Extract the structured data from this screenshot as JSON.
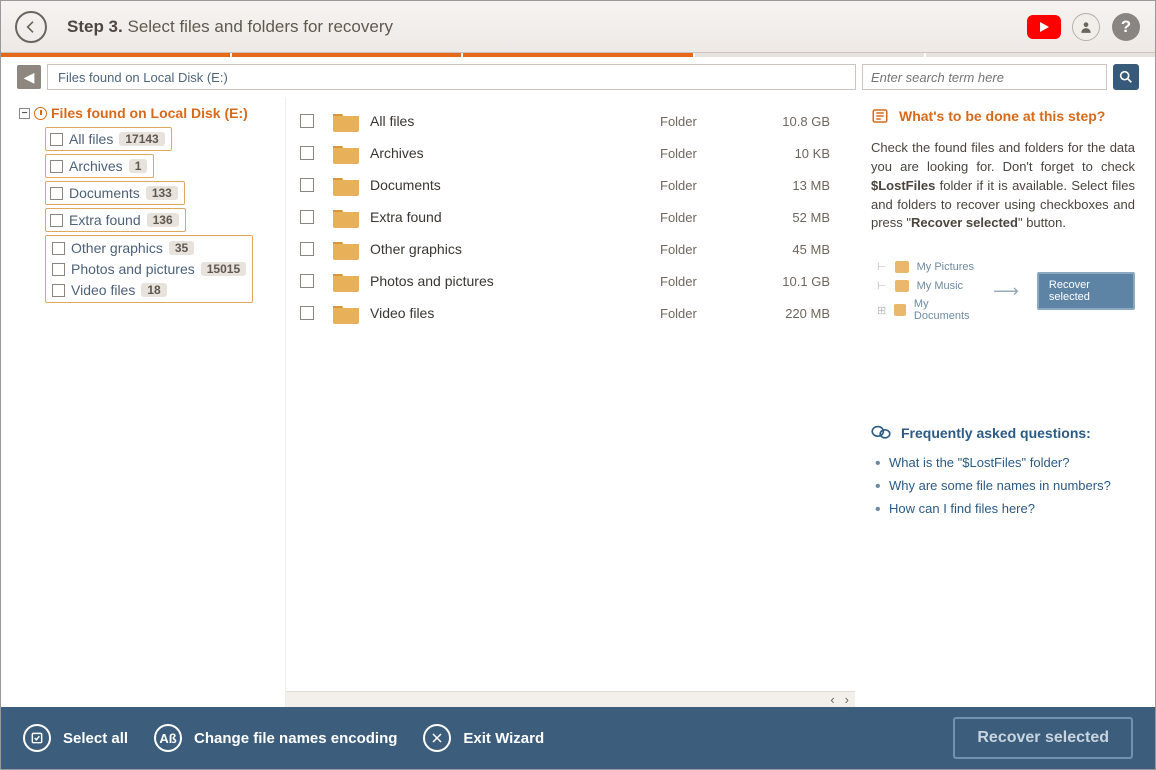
{
  "header": {
    "step_label": "Step 3.",
    "step_text": "Select files and folders for recovery"
  },
  "progress": {
    "total": 5,
    "completed": 3
  },
  "breadcrumb": {
    "path": "Files found on Local Disk (E:)"
  },
  "search": {
    "placeholder": "Enter search term here"
  },
  "tree": {
    "root_label": "Files found on Local Disk (E:)",
    "items": [
      {
        "label": "All files",
        "count": "17143"
      },
      {
        "label": "Archives",
        "count": "1"
      },
      {
        "label": "Documents",
        "count": "133"
      },
      {
        "label": "Extra found",
        "count": "136"
      },
      {
        "label": "Other graphics",
        "count": "35"
      },
      {
        "label": "Photos and pictures",
        "count": "15015"
      },
      {
        "label": "Video files",
        "count": "18"
      }
    ]
  },
  "list": {
    "rows": [
      {
        "name": "All files",
        "type": "Folder",
        "size": "10.8 GB"
      },
      {
        "name": "Archives",
        "type": "Folder",
        "size": "10 KB"
      },
      {
        "name": "Documents",
        "type": "Folder",
        "size": "13 MB"
      },
      {
        "name": "Extra found",
        "type": "Folder",
        "size": "52 MB"
      },
      {
        "name": "Other graphics",
        "type": "Folder",
        "size": "45 MB"
      },
      {
        "name": "Photos and pictures",
        "type": "Folder",
        "size": "10.1 GB"
      },
      {
        "name": "Video files",
        "type": "Folder",
        "size": "220 MB"
      }
    ]
  },
  "help": {
    "title": "What's to be done at this step?",
    "text_pre": "Check the found files and folders for the data you are looking for. Don't forget to check ",
    "text_bold1": "$LostFiles",
    "text_mid": " folder if it is available. Select files and folders to recover using checkboxes and press \"",
    "text_bold2": "Recover selected",
    "text_post": "\" button.",
    "illus": {
      "rows": [
        "My Pictures",
        "My Music",
        "My Documents"
      ],
      "btn": "Recover selected"
    },
    "faq_title": "Frequently asked questions:",
    "faq": [
      "What is the \"$LostFiles\" folder?",
      "Why are some file names in numbers?",
      "How can I find files here?"
    ]
  },
  "footer": {
    "select_all": "Select all",
    "encoding": "Change file names encoding",
    "exit": "Exit Wizard",
    "recover": "Recover selected"
  },
  "colors": {
    "accent_orange": "#d76a1a",
    "accent_blue": "#3c5e7c"
  }
}
